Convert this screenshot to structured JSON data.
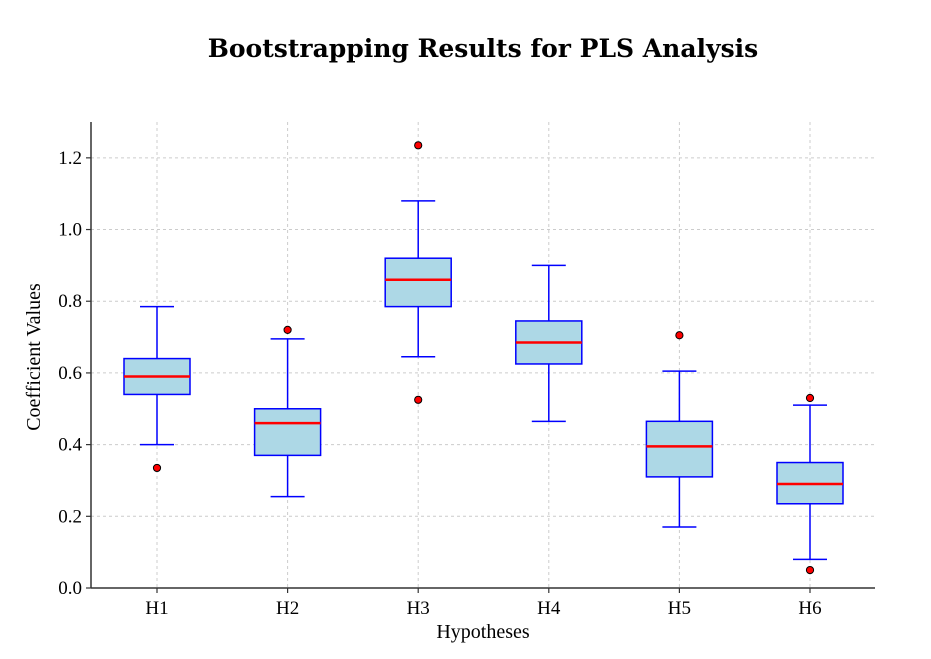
{
  "chart_data": {
    "type": "box",
    "title": "Bootstrapping Results for PLS Analysis",
    "xlabel": "Hypotheses",
    "ylabel": "Coefficient Values",
    "ylim": [
      0,
      1.3
    ],
    "yticks": [
      0.0,
      0.2,
      0.4,
      0.6,
      0.8,
      1.0,
      1.2
    ],
    "ytick_labels": [
      "0.0",
      "0.2",
      "0.4",
      "0.6",
      "0.8",
      "1.0",
      "1.2"
    ],
    "grid": true,
    "categories": [
      "H1",
      "H2",
      "H3",
      "H4",
      "H5",
      "H6"
    ],
    "boxes": [
      {
        "whisker_low": 0.4,
        "q1": 0.54,
        "median": 0.59,
        "q3": 0.64,
        "whisker_high": 0.785,
        "outliers": [
          0.335
        ]
      },
      {
        "whisker_low": 0.255,
        "q1": 0.37,
        "median": 0.46,
        "q3": 0.5,
        "whisker_high": 0.695,
        "outliers": [
          0.72
        ]
      },
      {
        "whisker_low": 0.645,
        "q1": 0.785,
        "median": 0.86,
        "q3": 0.92,
        "whisker_high": 1.08,
        "outliers": [
          0.525,
          1.235
        ]
      },
      {
        "whisker_low": 0.465,
        "q1": 0.625,
        "median": 0.685,
        "q3": 0.745,
        "whisker_high": 0.9,
        "outliers": []
      },
      {
        "whisker_low": 0.17,
        "q1": 0.31,
        "median": 0.395,
        "q3": 0.465,
        "whisker_high": 0.605,
        "outliers": [
          0.705
        ]
      },
      {
        "whisker_low": 0.08,
        "q1": 0.235,
        "median": 0.29,
        "q3": 0.35,
        "whisker_high": 0.51,
        "outliers": [
          0.53,
          0.05
        ]
      }
    ],
    "colors": {
      "box_fill": "#add8e6",
      "box_edge": "#0000ff",
      "median": "#ff0000",
      "outlier_fill": "#ff0000",
      "outlier_edge": "#000000"
    }
  }
}
